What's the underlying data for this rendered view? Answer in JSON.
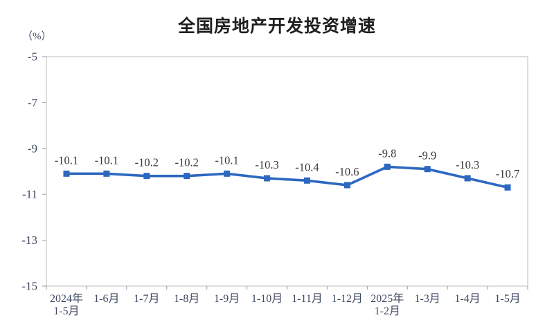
{
  "chart_data": {
    "type": "line",
    "title": "全国房地产开发投资增速",
    "ylabel": "（%）",
    "xlabel": "",
    "categories": [
      "2024年\n1-5月",
      "1-6月",
      "1-7月",
      "1-8月",
      "1-9月",
      "1-10月",
      "1-11月",
      "1-12月",
      "2025年\n1-2月",
      "1-3月",
      "1-4月",
      "1-5月"
    ],
    "values": [
      -10.1,
      -10.1,
      -10.2,
      -10.2,
      -10.1,
      -10.3,
      -10.4,
      -10.6,
      -9.8,
      -9.9,
      -10.3,
      -10.7
    ],
    "data_labels": [
      "-10.1",
      "-10.1",
      "-10.2",
      "-10.2",
      "-10.1",
      "-10.3",
      "-10.4",
      "-10.6",
      "-9.8",
      "-9.9",
      "-10.3",
      "-10.7"
    ],
    "ylim": [
      -15,
      -5
    ],
    "y_ticks": [
      -5,
      -7,
      -9,
      -11,
      -13,
      -15
    ],
    "grid": false,
    "legend": "none",
    "colors": {
      "line": "#2c68c0",
      "marker": "#2c68c0",
      "title": "#1f1f1f",
      "axis_text": "#3f4a63",
      "data_label": "#383838",
      "plot_border": "#c7c7c7",
      "tick": "#a8a8a8",
      "background": "#ffffff"
    }
  }
}
